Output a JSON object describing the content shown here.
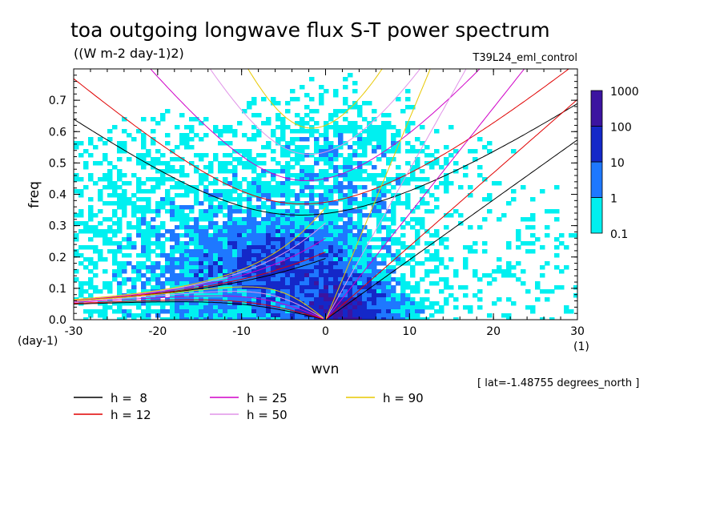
{
  "chart_data": {
    "type": "heatmap",
    "title": "toa outgoing longwave flux S-T power spectrum",
    "units": "((W m-2 day-1)2)",
    "run_label": "T39L24_eml_control",
    "xlabel": "wvn",
    "ylabel": "freq",
    "x_unit": "(1)",
    "y_unit": "(day-1)",
    "xlim": [
      -30,
      30
    ],
    "ylim": [
      0,
      0.8
    ],
    "x_ticks": [
      "-30",
      "-20",
      "-10",
      "0",
      "10",
      "20",
      "30"
    ],
    "y_ticks": [
      "0.0",
      "0.1",
      "0.2",
      "0.3",
      "0.4",
      "0.5",
      "0.6",
      "0.7"
    ],
    "footnote": "[ lat=-1.48755 degrees_north ]",
    "colorbar": {
      "levels": [
        "0.1",
        "1",
        "10",
        "100",
        "1000"
      ],
      "colors": [
        "#00f0f0",
        "#1e78ff",
        "#1428c8",
        "#3c14a0"
      ]
    },
    "equivalent_depths": [
      {
        "label": "h =  8",
        "h": 8,
        "color": "#000000"
      },
      {
        "label": "h = 12",
        "h": 12,
        "color": "#e00000"
      },
      {
        "label": "h = 25",
        "h": 25,
        "color": "#d000c8"
      },
      {
        "label": "h = 50",
        "h": 50,
        "color": "#e094e8"
      },
      {
        "label": "h = 90",
        "h": 90,
        "color": "#e8c800"
      }
    ]
  }
}
